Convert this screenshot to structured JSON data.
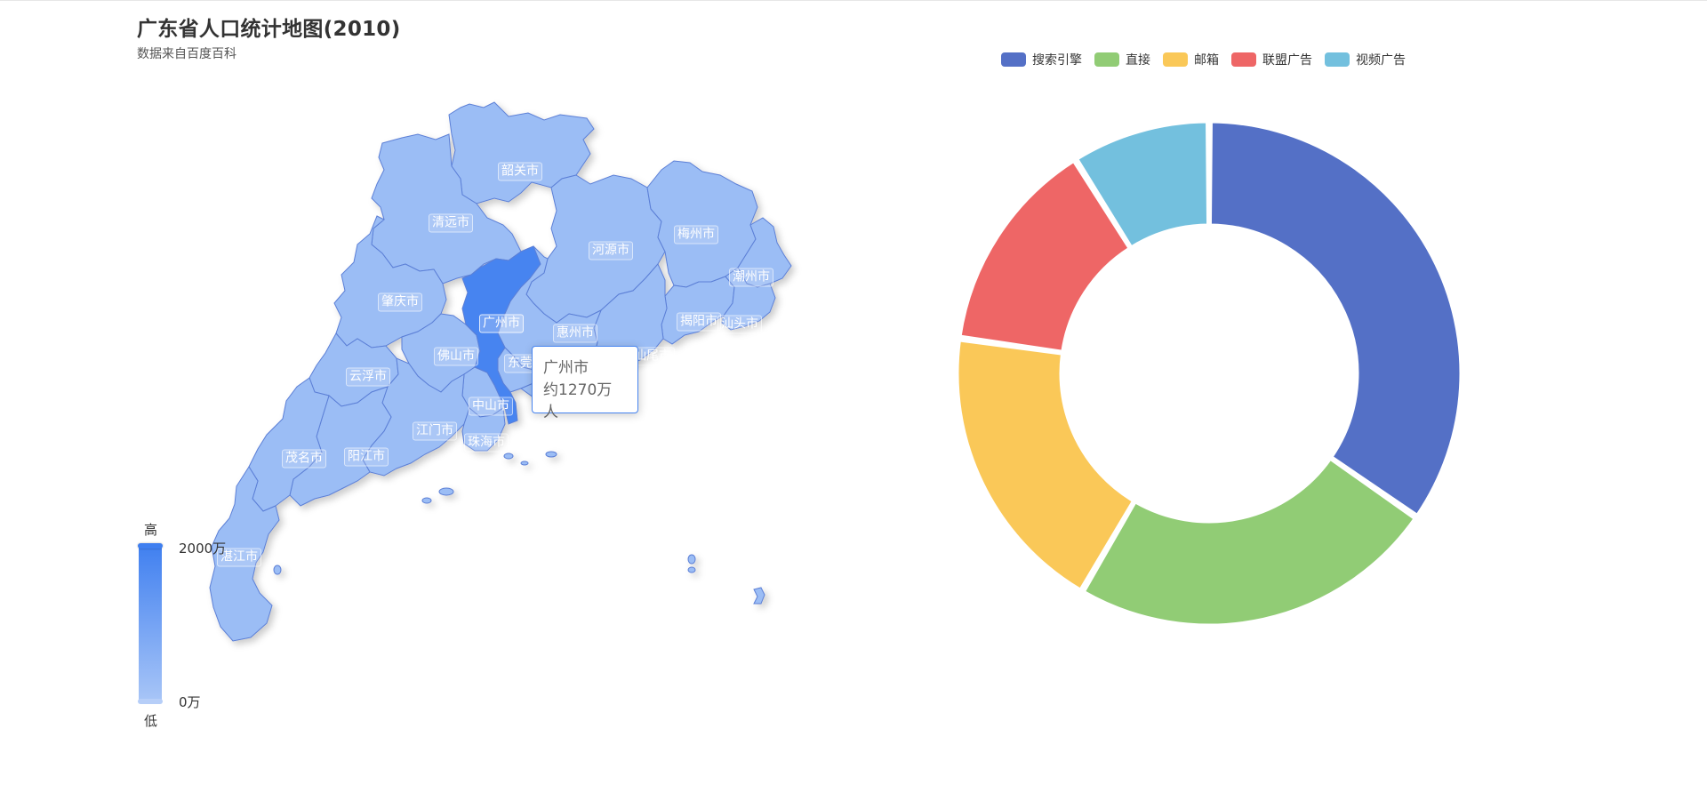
{
  "chart_data": [
    {
      "type": "map",
      "title": "广东省人口统计地图(2010)",
      "subtitle": "数据来自百度百科",
      "cities": [
        {
          "name": "韶关市"
        },
        {
          "name": "清远市"
        },
        {
          "name": "河源市"
        },
        {
          "name": "梅州市"
        },
        {
          "name": "潮州市"
        },
        {
          "name": "肇庆市"
        },
        {
          "name": "广州市"
        },
        {
          "name": "惠州市"
        },
        {
          "name": "揭阳市"
        },
        {
          "name": "汕头市"
        },
        {
          "name": "佛山市"
        },
        {
          "name": "东莞市"
        },
        {
          "name": "汕尾市"
        },
        {
          "name": "云浮市"
        },
        {
          "name": "中山市"
        },
        {
          "name": "江门市"
        },
        {
          "name": "茂名市"
        },
        {
          "name": "阳江市"
        },
        {
          "name": "珠海市"
        },
        {
          "name": "湛江市"
        }
      ],
      "visual_map": {
        "high_text": "高",
        "low_text": "低",
        "max_label": "2000万",
        "min_label": "0万",
        "color_high": "#3f7ff0",
        "color_low": "#a9c6f7"
      },
      "tooltip": {
        "name": "广州市",
        "value_text": "约1270万人"
      }
    },
    {
      "type": "pie",
      "donut": true,
      "legend_position": "top",
      "series": [
        {
          "name": "搜索引擎",
          "value": 35,
          "color": "#5470c6"
        },
        {
          "name": "直接",
          "value": 24,
          "color": "#91cc75"
        },
        {
          "name": "邮箱",
          "value": 19,
          "color": "#fac858"
        },
        {
          "name": "联盟广告",
          "value": 14,
          "color": "#ee6666"
        },
        {
          "name": "视频广告",
          "value": 9,
          "color": "#73c0de"
        }
      ]
    }
  ]
}
